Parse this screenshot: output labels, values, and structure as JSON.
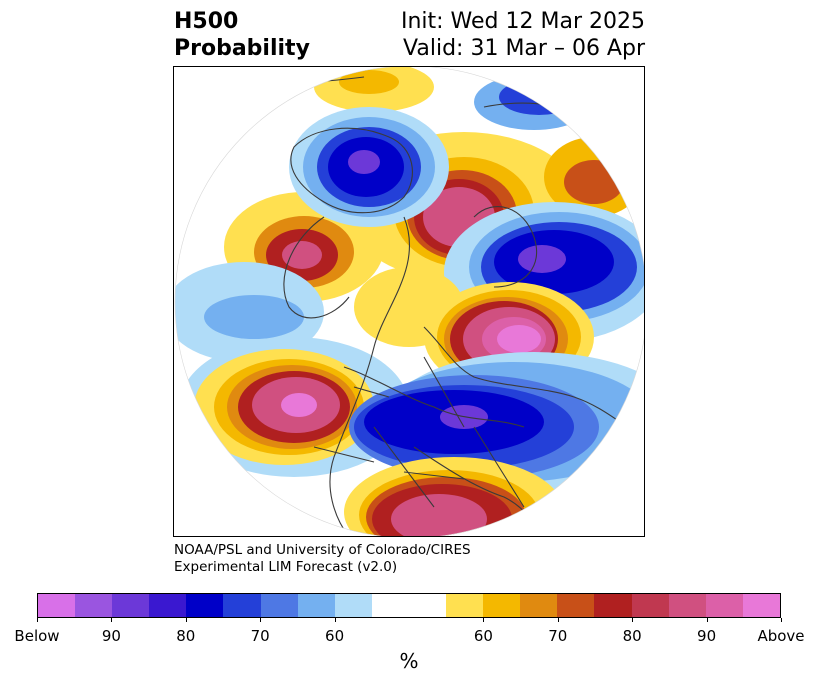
{
  "header": {
    "left_line1": "H500",
    "left_line2": "Probability",
    "right_line1": "Init: Wed 12 Mar 2025",
    "right_line2": "Valid: 31 Mar – 06 Apr"
  },
  "credit": {
    "line1": "NOAA/PSL and University of Colorado/CIRES",
    "line2": "Experimental LIM Forecast (v2.0)"
  },
  "colorbar": {
    "colors": [
      "#d870e8",
      "#9a55e0",
      "#6c38d8",
      "#3a18d0",
      "#0000c8",
      "#2440d8",
      "#4e78e4",
      "#74b0f0",
      "#b0dcf8",
      "#ffffff",
      "#ffffff",
      "#ffe050",
      "#f4b800",
      "#e08a10",
      "#c85018",
      "#b02020",
      "#c03850",
      "#d05080",
      "#dc60a8",
      "#e878d8"
    ],
    "tick_labels": [
      "Below",
      "90",
      "80",
      "70",
      "60",
      "60",
      "70",
      "80",
      "90",
      "Above"
    ],
    "unit": "%"
  }
}
